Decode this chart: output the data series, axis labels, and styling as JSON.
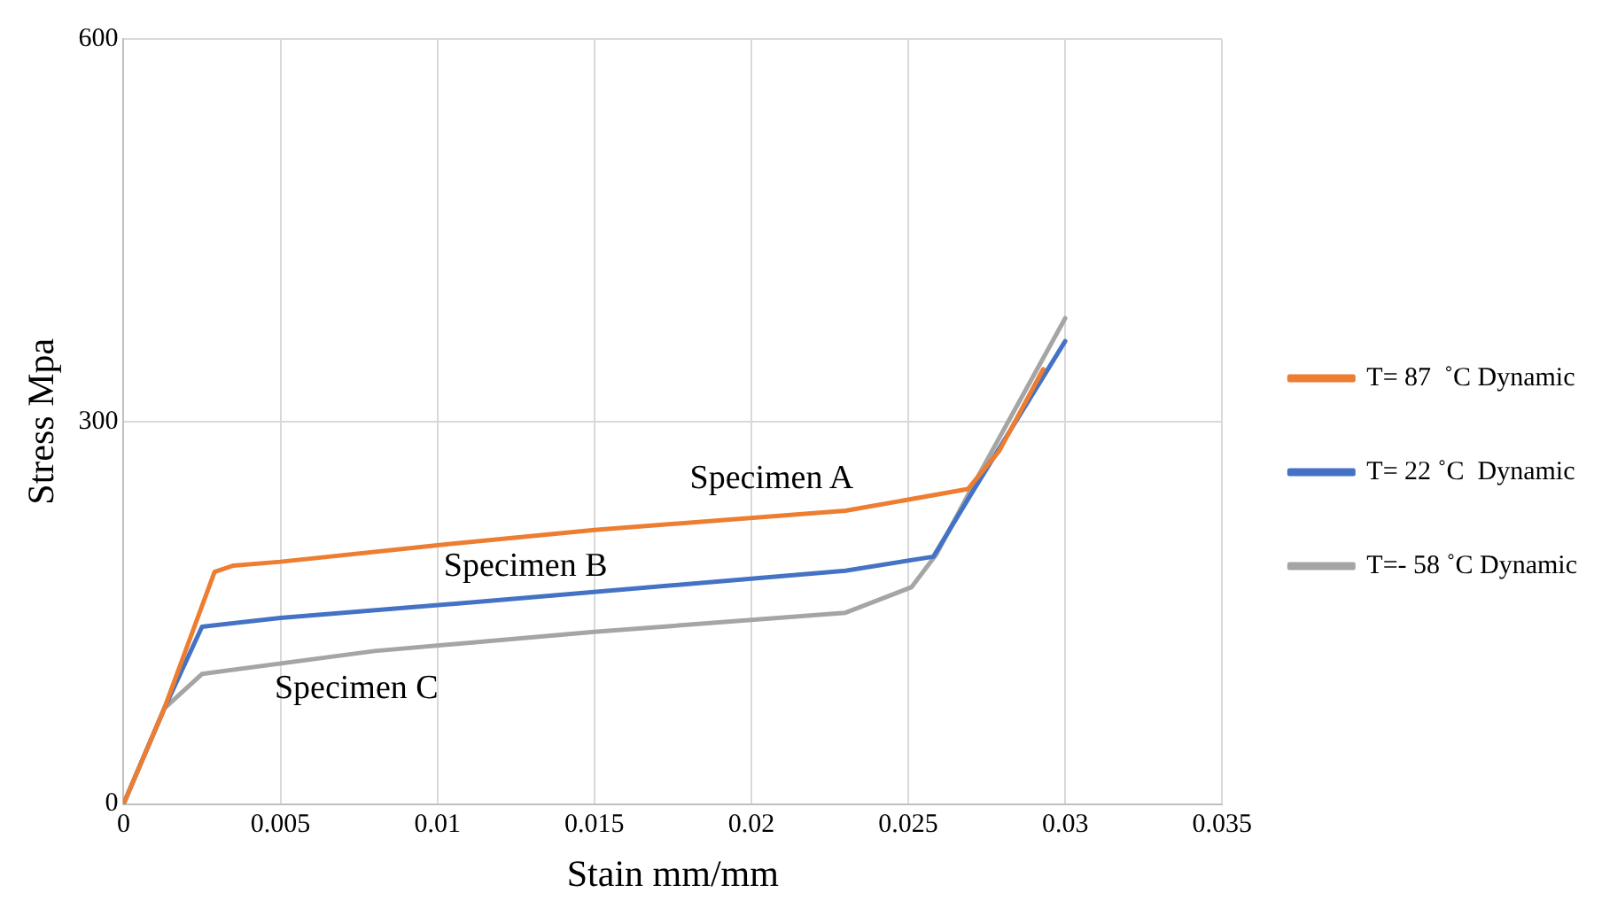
{
  "chart_data": {
    "type": "line",
    "xlabel": "Stain mm/mm",
    "ylabel": "Stress Mpa",
    "xlim": [
      0,
      0.035
    ],
    "xticks": [
      0,
      0.005,
      0.01,
      0.015,
      0.02,
      0.025,
      0.03,
      0.035
    ],
    "ylim": [
      0,
      600
    ],
    "yticks": [
      0,
      300,
      600
    ],
    "grid": true,
    "legend": "right",
    "marker": "none",
    "line_style": "solid",
    "series": [
      {
        "name": "T= 87  ˚C Dynamic",
        "color": "#ed7d31",
        "x": [
          0,
          0.0013,
          0.0029,
          0.0035,
          0.005,
          0.01,
          0.015,
          0.023,
          0.0269,
          0.0279,
          0.0293
        ],
        "values": [
          0,
          75,
          182,
          187,
          190,
          203,
          215,
          230,
          247,
          277,
          341
        ]
      },
      {
        "name": "T= 22 ˚C  Dynamic",
        "color": "#4472c4",
        "x": [
          0,
          0.0013,
          0.0025,
          0.005,
          0.012,
          0.023,
          0.0258,
          0.027,
          0.03
        ],
        "values": [
          0,
          75,
          139,
          146,
          160,
          183,
          194,
          243,
          363
        ]
      },
      {
        "name": "T=- 58 ˚C Dynamic",
        "color": "#a5a5a5",
        "x": [
          0,
          0.0013,
          0.0025,
          0.008,
          0.015,
          0.023,
          0.0251,
          0.0259,
          0.027,
          0.03
        ],
        "values": [
          0,
          75,
          102,
          120,
          135,
          150,
          170,
          196,
          247,
          381
        ]
      }
    ],
    "annotations": [
      "Specimen A",
      "Specimen B",
      "Specimen C"
    ]
  }
}
